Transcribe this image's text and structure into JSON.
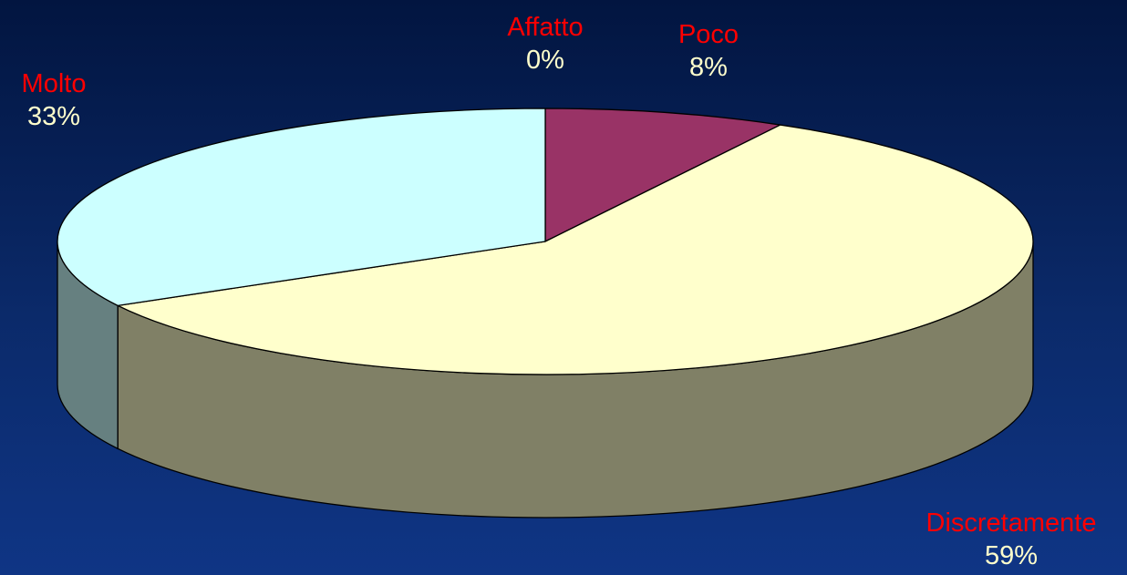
{
  "chart_data": {
    "type": "pie",
    "style": "3d",
    "start_angle_deg": 0,
    "direction": "clockwise",
    "slices": [
      {
        "label": "Affatto",
        "value": 0,
        "percent_label": "0%",
        "color": "#993366"
      },
      {
        "label": "Poco",
        "value": 8,
        "percent_label": "8%",
        "color": "#993366"
      },
      {
        "label": "Discretamente",
        "value": 59,
        "percent_label": "59%",
        "color": "#ffffcc"
      },
      {
        "label": "Molto",
        "value": 33,
        "percent_label": "33%",
        "color": "#ccffff"
      }
    ],
    "label_name_color": "#ff0000",
    "label_percent_color": "#ffffcc",
    "background_top_color": "#021540",
    "background_bottom_color": "#0f3585"
  }
}
